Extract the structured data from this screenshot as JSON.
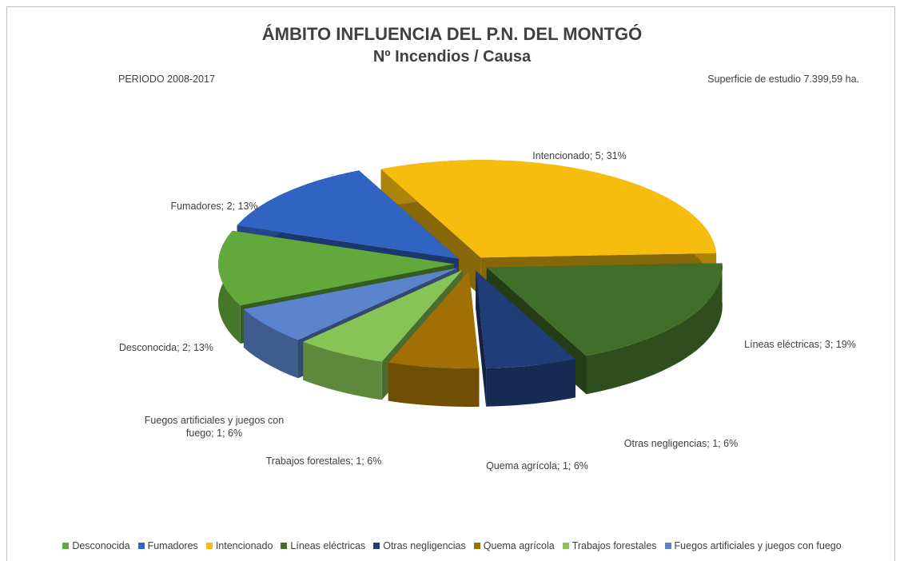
{
  "chart_data": {
    "type": "pie3d",
    "title": "ÁMBITO INFLUENCIA DEL P.N. DEL MONTGÓ",
    "subtitle": "Nº Incendios / Causa",
    "annotations": [
      "PERIODO 2008-2017",
      "Superficie de estudio 7.399,59 ha."
    ],
    "categories": [
      "Desconocida",
      "Fumadores",
      "Intencionado",
      "Líneas eléctricas",
      "Otras negligencias",
      "Quema agrícola",
      "Trabajos forestales",
      "Fuegos artificiales y juegos con fuego"
    ],
    "values": [
      2,
      2,
      5,
      3,
      1,
      1,
      1,
      1
    ],
    "value_labels": [
      "Desconocida; 2; 13%",
      "Fumadores; 2; 13%",
      "Intencionado; 5; 31%",
      "Líneas eléctricas; 3; 19%",
      "Otras negligencias; 1; 6%",
      "Quema agrícola; 1; 6%",
      "Trabajos forestales; 1; 6%",
      "Fuegos artificiales y juegos con fuego; 1; 6%"
    ],
    "colors": [
      "#62a83a",
      "#3164c2",
      "#f6bd0e",
      "#416f2a",
      "#203d78",
      "#a06f05",
      "#86c456",
      "#5b84cc"
    ],
    "legend": "bottom"
  }
}
